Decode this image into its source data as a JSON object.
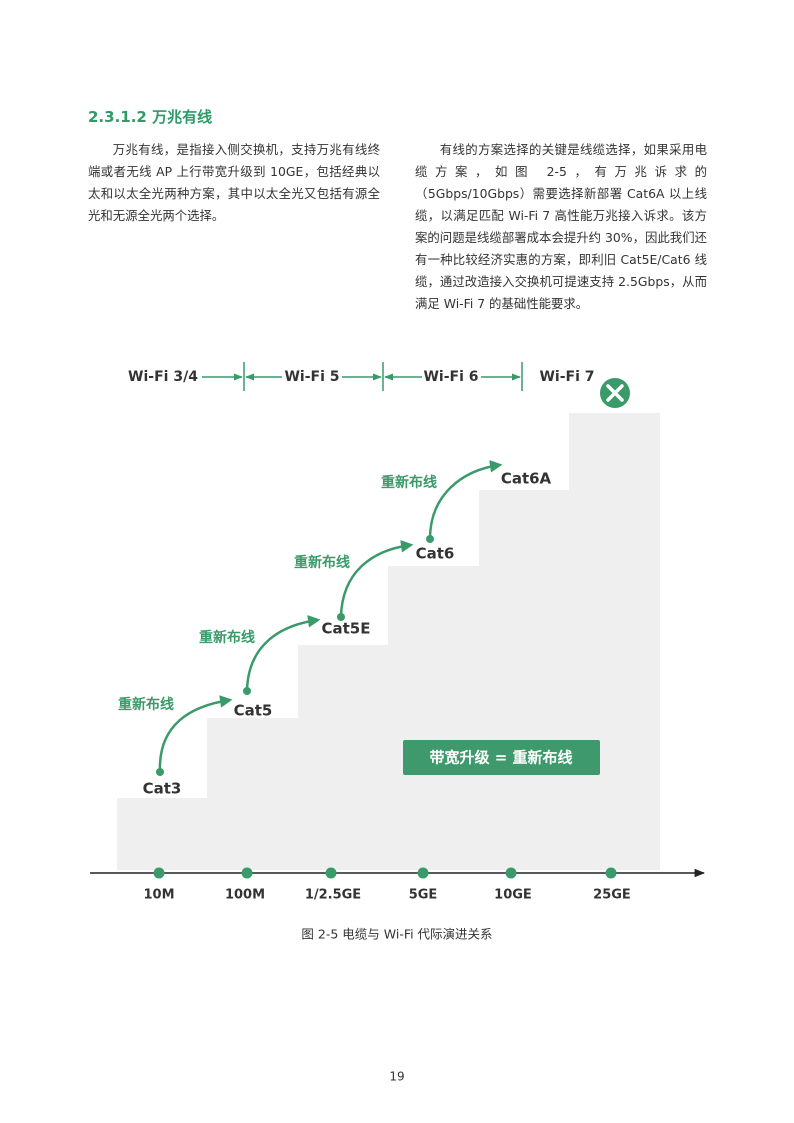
{
  "header": {
    "title": "2.3.1.2 万兆有线"
  },
  "paragraphs": [
    "万兆有线，是指接入侧交换机，支持万兆有线终端或者无线 AP 上行带宽升级到 10GE，包括经典以太和以太全光两种方案，其中以太全光又包括有源全光和无源全光两个选择。",
    "有线的方案选择的关键是线缆选择，如果采用电缆方案，如图 2-5，有万兆诉求的（5Gbps/10Gbps）需要选择新部署 Cat6A 以上线缆，以满足匹配 Wi-Fi 7 高性能万兆接入诉求。该方案的问题是线缆部署成本会提升约 30%，因此我们还有一种比较经济实惠的方案，即利旧 Cat5E/Cat6 线缆，通过改造接入交换机可提速支持 2.5Gbps，从而满足 Wi-Fi 7 的基础性能要求。"
  ],
  "figure": {
    "wifi_generations": [
      "Wi-Fi 3/4",
      "Wi-Fi 5",
      "Wi-Fi 6",
      "Wi-Fi 7"
    ],
    "cables": [
      "Cat3",
      "Cat5",
      "Cat5E",
      "Cat6",
      "Cat6A"
    ],
    "rewire_labels": [
      "重新布线",
      "重新布线",
      "重新布线",
      "重新布线"
    ],
    "speeds": [
      "10M",
      "100M",
      "1/2.5GE",
      "5GE",
      "10GE",
      "25GE"
    ],
    "callout": "带宽升级 = 重新布线",
    "caption": "图 2-5 电缆与 Wi-Fi 代际演进关系"
  },
  "page_number": "19"
}
